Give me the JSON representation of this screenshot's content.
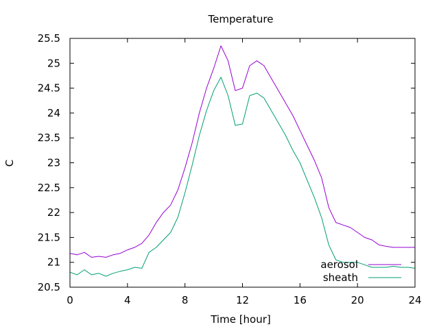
{
  "chart_data": {
    "type": "line",
    "title": "Temperature",
    "xlabel": "Time [hour]",
    "ylabel": "C",
    "xlim": [
      0,
      24
    ],
    "ylim": [
      20.5,
      25.5
    ],
    "xticks": [
      0,
      4,
      8,
      12,
      16,
      20,
      24
    ],
    "yticks": [
      20.5,
      21,
      21.5,
      22,
      22.5,
      23,
      23.5,
      24,
      24.5,
      25,
      25.5
    ],
    "xtick_labels": [
      "0",
      "4",
      "8",
      "12",
      "16",
      "20",
      "24"
    ],
    "ytick_labels": [
      "20.5",
      "21",
      "21.5",
      "22",
      "22.5",
      "23",
      "23.5",
      "24",
      "24.5",
      "25",
      "25.5"
    ],
    "grid": false,
    "legend_position": "bottom-right",
    "series": [
      {
        "name": "aerosol",
        "color": "#9400d3",
        "x": [
          0,
          0.5,
          1,
          1.5,
          2,
          2.5,
          3,
          3.5,
          4,
          4.5,
          5,
          5.5,
          6,
          6.5,
          7,
          7.5,
          8,
          8.5,
          9,
          9.5,
          10,
          10.5,
          11,
          11.5,
          12,
          12.5,
          13,
          13.5,
          14,
          14.5,
          15,
          15.5,
          16,
          16.5,
          17,
          17.5,
          18,
          18.5,
          19,
          19.5,
          20,
          20.5,
          21,
          21.5,
          22,
          22.5,
          23,
          23.5,
          24
        ],
        "y": [
          21.18,
          21.15,
          21.2,
          21.1,
          21.12,
          21.1,
          21.15,
          21.18,
          21.25,
          21.3,
          21.38,
          21.55,
          21.8,
          22.0,
          22.15,
          22.45,
          22.9,
          23.4,
          24.0,
          24.5,
          24.9,
          25.35,
          25.05,
          24.45,
          24.5,
          24.95,
          25.05,
          24.95,
          24.7,
          24.45,
          24.2,
          23.95,
          23.65,
          23.35,
          23.05,
          22.7,
          22.1,
          21.8,
          21.75,
          21.7,
          21.6,
          21.5,
          21.45,
          21.35,
          21.32,
          21.3,
          21.3,
          21.3,
          21.3
        ]
      },
      {
        "name": "sheath",
        "color": "#009e73",
        "x": [
          0,
          0.5,
          1,
          1.5,
          2,
          2.5,
          3,
          3.5,
          4,
          4.5,
          5,
          5.5,
          6,
          6.5,
          7,
          7.5,
          8,
          8.5,
          9,
          9.5,
          10,
          10.5,
          11,
          11.5,
          12,
          12.5,
          13,
          13.5,
          14,
          14.5,
          15,
          15.5,
          16,
          16.5,
          17,
          17.5,
          18,
          18.5,
          19,
          19.5,
          20,
          20.5,
          21,
          21.5,
          22,
          22.5,
          23,
          23.5,
          24
        ],
        "y": [
          20.8,
          20.75,
          20.85,
          20.75,
          20.78,
          20.72,
          20.78,
          20.82,
          20.85,
          20.9,
          20.88,
          21.2,
          21.3,
          21.45,
          21.6,
          21.9,
          22.4,
          22.95,
          23.55,
          24.05,
          24.45,
          24.72,
          24.35,
          23.75,
          23.78,
          24.35,
          24.4,
          24.3,
          24.05,
          23.8,
          23.55,
          23.25,
          23.0,
          22.65,
          22.3,
          21.9,
          21.35,
          21.05,
          21.0,
          21.0,
          21.0,
          20.95,
          20.9,
          20.9,
          20.9,
          20.92,
          20.9,
          20.9,
          20.88
        ]
      }
    ]
  }
}
